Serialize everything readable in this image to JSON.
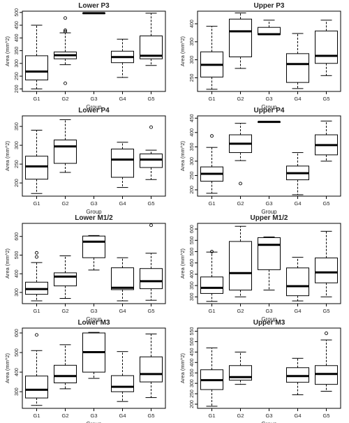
{
  "chart_data": [
    {
      "type": "box",
      "title": "Lower P3",
      "xlabel": "Group",
      "ylabel": "Area (mm^2)",
      "categories": [
        "G1",
        "G2",
        "G3",
        "G4",
        "G5"
      ],
      "yticks": [
        200,
        250,
        300,
        350,
        400,
        450,
        500
      ],
      "ylim": [
        190,
        505
      ],
      "boxes": [
        {
          "group": "G1",
          "whisker_low": 200,
          "q1": 235,
          "median": 268,
          "q3": 330,
          "whisker_high": 450,
          "outliers": []
        },
        {
          "group": "G2",
          "whisker_low": 295,
          "q1": 318,
          "median": 332,
          "q3": 345,
          "whisker_high": 420,
          "outliers": [
            222,
            425,
            430,
            478
          ]
        },
        {
          "group": "G3",
          "whisker_low": 497,
          "q1": 497,
          "median": 497,
          "q3": 497,
          "whisker_high": 497,
          "outliers": []
        },
        {
          "group": "G4",
          "whisker_low": 245,
          "q1": 303,
          "median": 325,
          "q3": 348,
          "whisker_high": 395,
          "outliers": []
        },
        {
          "group": "G5",
          "whisker_low": 292,
          "q1": 318,
          "median": 330,
          "q3": 408,
          "whisker_high": 497,
          "outliers": []
        }
      ]
    },
    {
      "type": "box",
      "title": "Upper P3",
      "xlabel": "Group",
      "ylabel": "Area (mm^2)",
      "categories": [
        "G1",
        "G2",
        "G3",
        "G4",
        "G5"
      ],
      "yticks": [
        250,
        300,
        350,
        400
      ],
      "ylim": [
        212,
        435
      ],
      "boxes": [
        {
          "group": "G1",
          "whisker_low": 218,
          "q1": 252,
          "median": 286,
          "q3": 322,
          "whisker_high": 393,
          "outliers": []
        },
        {
          "group": "G2",
          "whisker_low": 276,
          "q1": 308,
          "median": 379,
          "q3": 413,
          "whisker_high": 430,
          "outliers": []
        },
        {
          "group": "G3",
          "whisker_low": 370,
          "q1": 370,
          "median": 371,
          "q3": 390,
          "whisker_high": 410,
          "outliers": []
        },
        {
          "group": "G4",
          "whisker_low": 220,
          "q1": 237,
          "median": 288,
          "q3": 317,
          "whisker_high": 373,
          "outliers": []
        },
        {
          "group": "G5",
          "whisker_low": 256,
          "q1": 290,
          "median": 311,
          "q3": 380,
          "whisker_high": 410,
          "outliers": []
        }
      ]
    },
    {
      "type": "box",
      "title": "Lower P4",
      "xlabel": "Group",
      "ylabel": "Area (mm^2)",
      "categories": [
        "G1",
        "G2",
        "G3",
        "G4",
        "G5"
      ],
      "yticks": [
        200,
        250,
        300,
        350
      ],
      "ylim": [
        165,
        378
      ],
      "boxes": [
        {
          "group": "G1",
          "whisker_low": 172,
          "q1": 210,
          "median": 244,
          "q3": 271,
          "whisker_high": 340,
          "outliers": []
        },
        {
          "group": "G2",
          "whisker_low": 228,
          "q1": 252,
          "median": 297,
          "q3": 314,
          "whisker_high": 368,
          "outliers": []
        },
        {
          "group": "G4",
          "whisker_low": 188,
          "q1": 215,
          "median": 262,
          "q3": 290,
          "whisker_high": 308,
          "outliers": []
        },
        {
          "group": "G5",
          "whisker_low": 209,
          "q1": 241,
          "median": 262,
          "q3": 277,
          "whisker_high": 287,
          "outliers": [
            348
          ]
        }
      ]
    },
    {
      "type": "box",
      "title": "Upper P4",
      "xlabel": "Group",
      "ylabel": "Area (mm^2)",
      "categories": [
        "G1",
        "G2",
        "G3",
        "G4",
        "G5"
      ],
      "yticks": [
        200,
        250,
        300,
        350,
        400,
        450
      ],
      "ylim": [
        178,
        458
      ],
      "boxes": [
        {
          "group": "G1",
          "whisker_low": 188,
          "q1": 230,
          "median": 256,
          "q3": 280,
          "whisker_high": 348,
          "outliers": [
            388
          ]
        },
        {
          "group": "G2",
          "whisker_low": 302,
          "q1": 330,
          "median": 361,
          "q3": 392,
          "whisker_high": 432,
          "outliers": [
            222
          ]
        },
        {
          "group": "G3",
          "whisker_low": 437,
          "q1": 437,
          "median": 437,
          "q3": 437,
          "whisker_high": 437,
          "outliers": []
        },
        {
          "group": "G4",
          "whisker_low": 183,
          "q1": 235,
          "median": 258,
          "q3": 283,
          "whisker_high": 330,
          "outliers": []
        },
        {
          "group": "G5",
          "whisker_low": 300,
          "q1": 322,
          "median": 356,
          "q3": 392,
          "whisker_high": 440,
          "outliers": []
        }
      ]
    },
    {
      "type": "box",
      "title": "Lower M1/2",
      "xlabel": "Group",
      "ylabel": "Area (mm^2)",
      "categories": [
        "G1",
        "G2",
        "G3",
        "G4",
        "G5"
      ],
      "yticks": [
        300,
        400,
        500,
        600
      ],
      "ylim": [
        240,
        670
      ],
      "boxes": [
        {
          "group": "G1",
          "whisker_low": 255,
          "q1": 290,
          "median": 318,
          "q3": 355,
          "whisker_high": 460,
          "outliers": [
            490,
            512
          ]
        },
        {
          "group": "G2",
          "whisker_low": 268,
          "q1": 335,
          "median": 385,
          "q3": 405,
          "whisker_high": 496,
          "outliers": []
        },
        {
          "group": "G3",
          "whisker_low": 420,
          "q1": 486,
          "median": 572,
          "q3": 602,
          "whisker_high": 605,
          "outliers": []
        },
        {
          "group": "G4",
          "whisker_low": 255,
          "q1": 315,
          "median": 325,
          "q3": 432,
          "whisker_high": 486,
          "outliers": []
        },
        {
          "group": "G5",
          "whisker_low": 258,
          "q1": 320,
          "median": 360,
          "q3": 428,
          "whisker_high": 510,
          "outliers": [
            660
          ]
        }
      ]
    },
    {
      "type": "box",
      "title": "Upper M1/2",
      "xlabel": "Group",
      "ylabel": "Area (mm^2)",
      "categories": [
        "G1",
        "G2",
        "G3",
        "G4",
        "G5"
      ],
      "yticks": [
        300,
        350,
        400,
        450,
        500,
        550,
        600
      ],
      "ylim": [
        270,
        625
      ],
      "boxes": [
        {
          "group": "G1",
          "whisker_low": 280,
          "q1": 315,
          "median": 340,
          "q3": 388,
          "whisker_high": 498,
          "outliers": [
            500
          ]
        },
        {
          "group": "G2",
          "whisker_low": 300,
          "q1": 330,
          "median": 405,
          "q3": 545,
          "whisker_high": 612,
          "outliers": []
        },
        {
          "group": "G3",
          "whisker_low": 330,
          "q1": 420,
          "median": 530,
          "q3": 562,
          "whisker_high": 565,
          "outliers": []
        },
        {
          "group": "G4",
          "whisker_low": 282,
          "q1": 305,
          "median": 347,
          "q3": 428,
          "whisker_high": 475,
          "outliers": []
        },
        {
          "group": "G5",
          "whisker_low": 300,
          "q1": 362,
          "median": 408,
          "q3": 472,
          "whisker_high": 590,
          "outliers": []
        }
      ]
    },
    {
      "type": "box",
      "title": "Lower M3",
      "xlabel": "Group",
      "ylabel": "Area (mm^2)",
      "categories": [
        "G1",
        "G2",
        "G3",
        "G4",
        "G5"
      ],
      "yticks": [
        300,
        400,
        500,
        600
      ],
      "ylim": [
        215,
        625
      ],
      "boxes": [
        {
          "group": "G1",
          "whisker_low": 230,
          "q1": 268,
          "median": 310,
          "q3": 380,
          "whisker_high": 510,
          "outliers": [
            590
          ]
        },
        {
          "group": "G2",
          "whisker_low": 315,
          "q1": 345,
          "median": 380,
          "q3": 435,
          "whisker_high": 540,
          "outliers": []
        },
        {
          "group": "G3",
          "whisker_low": 368,
          "q1": 400,
          "median": 502,
          "q3": 600,
          "whisker_high": 603,
          "outliers": []
        },
        {
          "group": "G4",
          "whisker_low": 250,
          "q1": 300,
          "median": 325,
          "q3": 382,
          "whisker_high": 505,
          "outliers": []
        },
        {
          "group": "G5",
          "whisker_low": 270,
          "q1": 350,
          "median": 390,
          "q3": 478,
          "whisker_high": 595,
          "outliers": []
        }
      ]
    },
    {
      "type": "box",
      "title": "Upper M3",
      "xlabel": "Group",
      "ylabel": "Area (mm^2)",
      "categories": [
        "G1",
        "G2",
        "G3",
        "G4",
        "G5"
      ],
      "yticks": [
        200,
        250,
        300,
        350,
        400,
        450,
        500,
        550
      ],
      "ylim": [
        180,
        565
      ],
      "boxes": [
        {
          "group": "G1",
          "whisker_low": 190,
          "q1": 270,
          "median": 315,
          "q3": 365,
          "whisker_high": 470,
          "outliers": []
        },
        {
          "group": "G2",
          "whisker_low": 295,
          "q1": 315,
          "median": 330,
          "q3": 385,
          "whisker_high": 450,
          "outliers": []
        },
        {
          "group": "G4",
          "whisker_low": 245,
          "q1": 305,
          "median": 335,
          "q3": 375,
          "whisker_high": 420,
          "outliers": []
        },
        {
          "group": "G5",
          "whisker_low": 262,
          "q1": 295,
          "median": 345,
          "q3": 385,
          "whisker_high": 508,
          "outliers": [
            540
          ]
        }
      ]
    }
  ]
}
